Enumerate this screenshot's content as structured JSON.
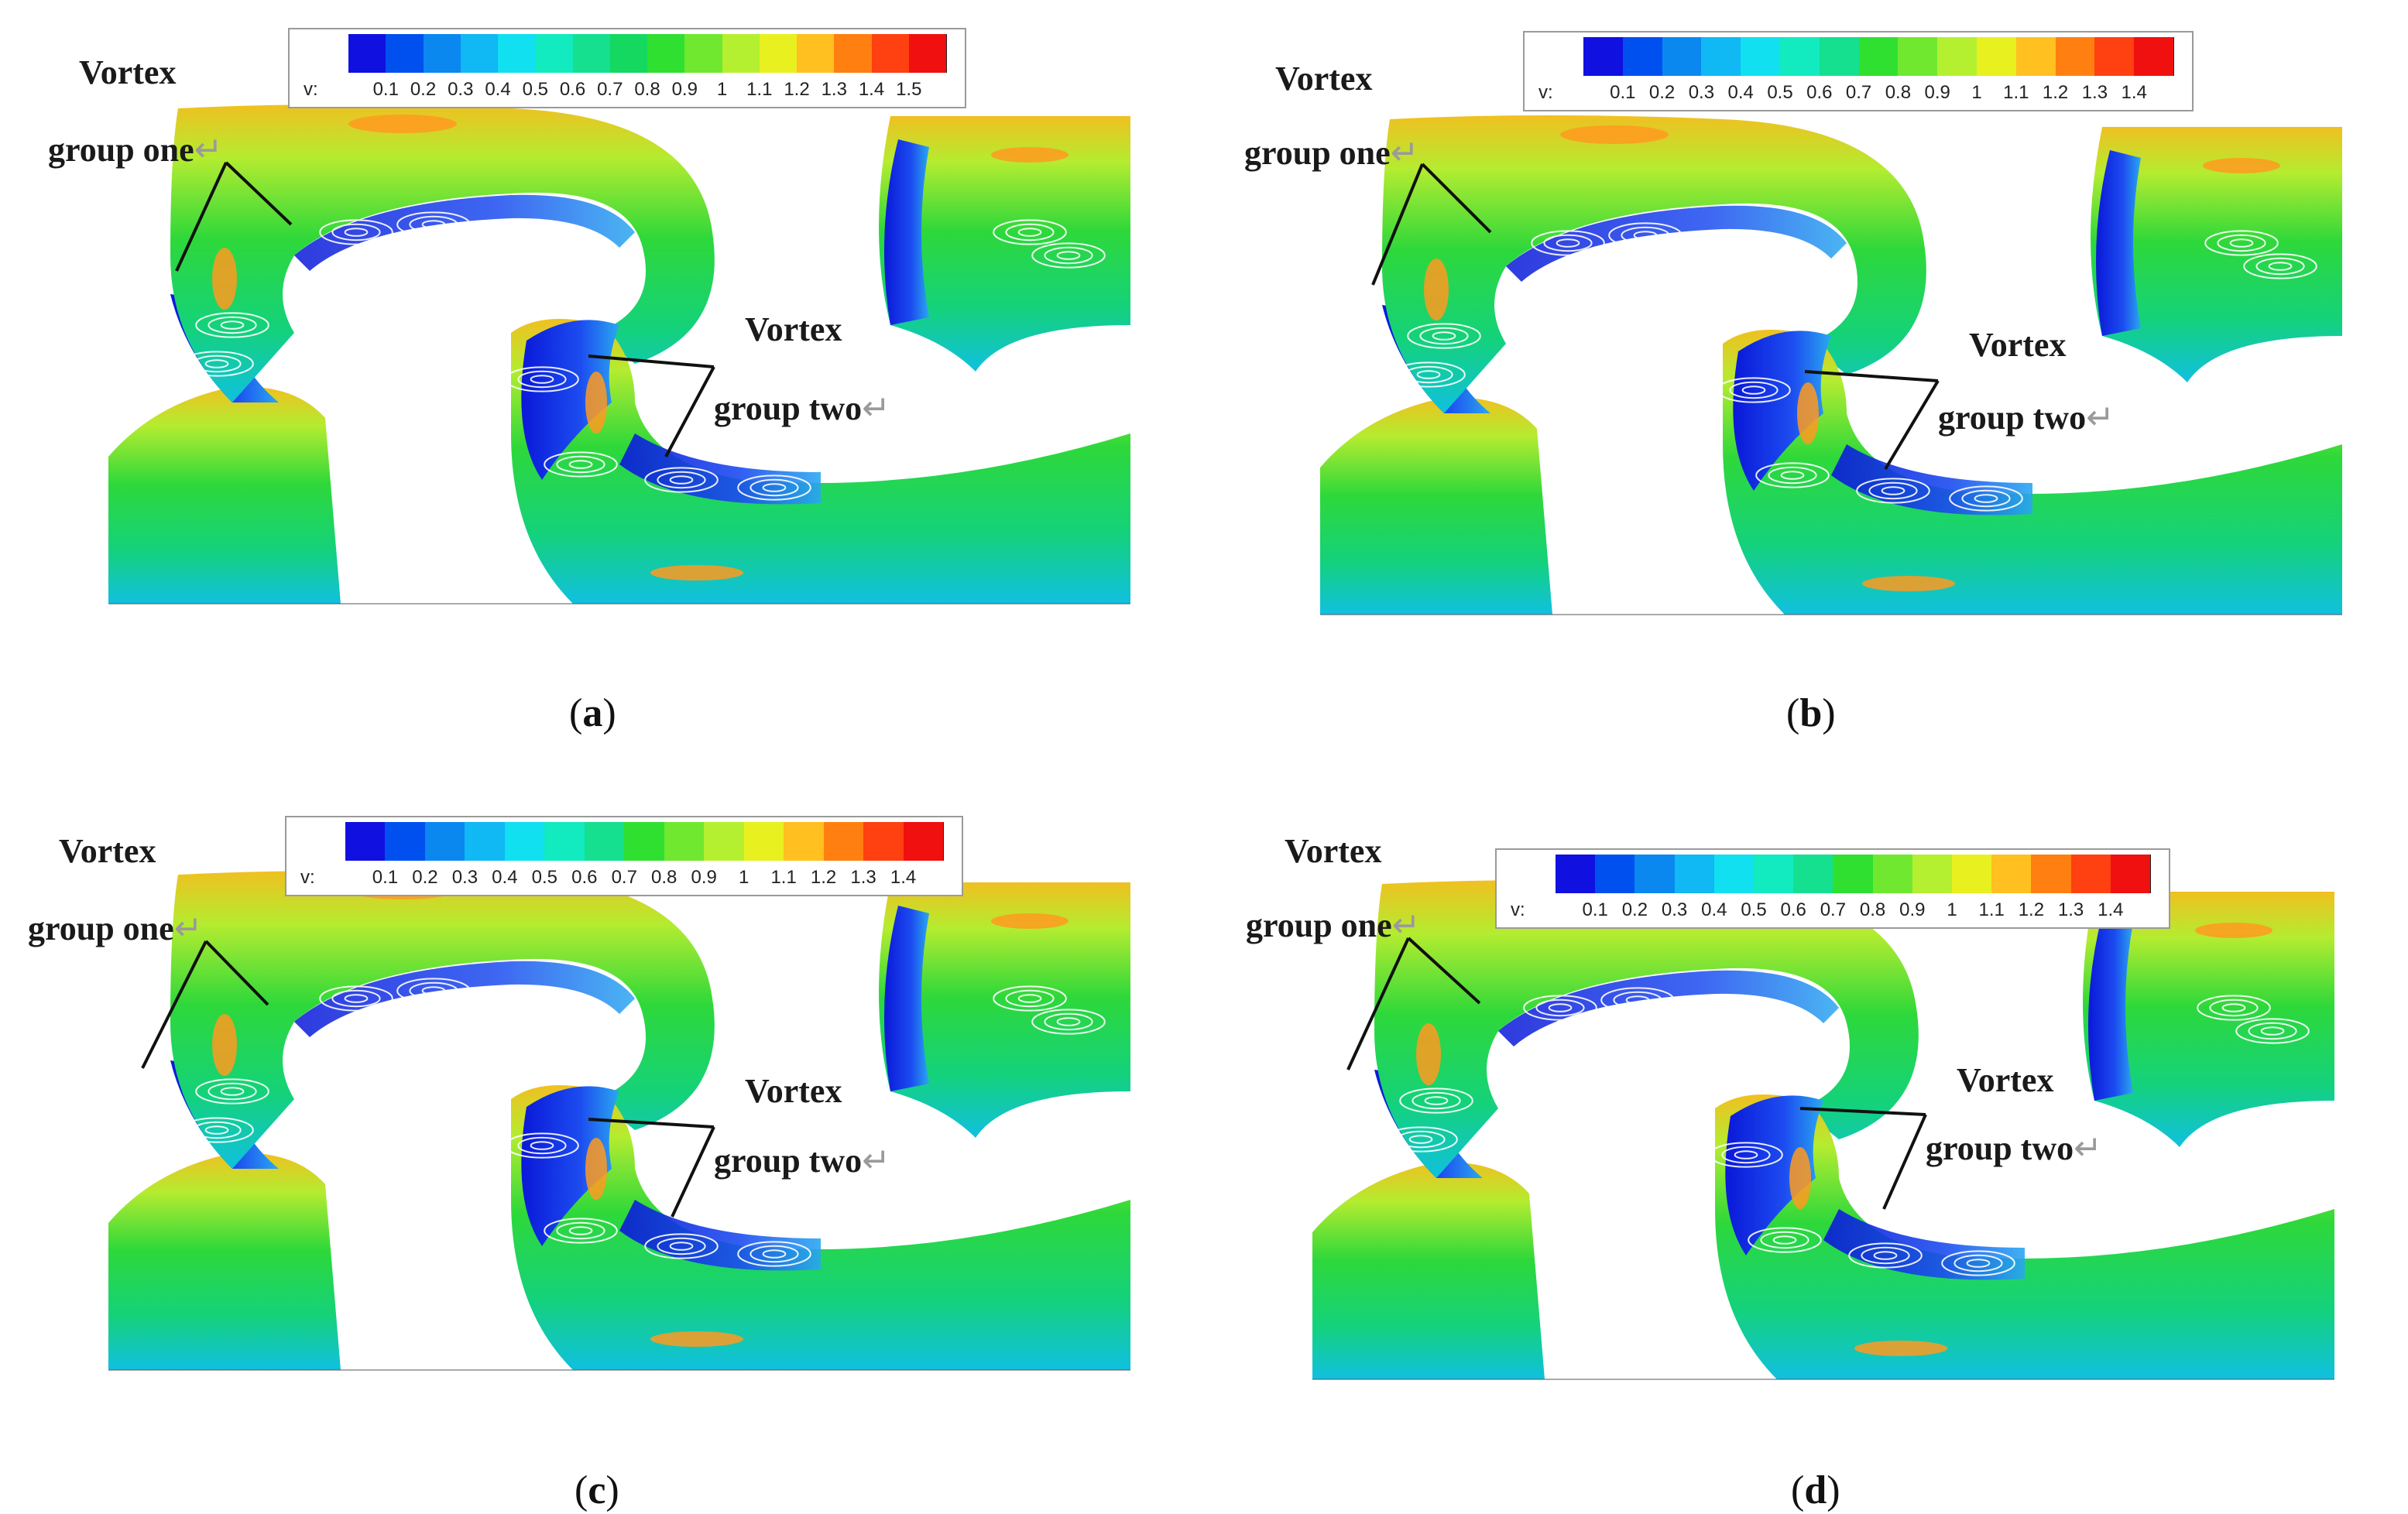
{
  "colors": {
    "scale": [
      "#1010e0",
      "#0050f0",
      "#0a88f0",
      "#10b8f4",
      "#10e0f0",
      "#12eac0",
      "#14e090",
      "#14d860",
      "#30e030",
      "#70e830",
      "#b4f030",
      "#e8f020",
      "#ffc020",
      "#ff8010",
      "#ff4010",
      "#f01010"
    ],
    "line": "#111111",
    "streamline": "#ffffff"
  },
  "panels": [
    {
      "id": "a",
      "caption": "a",
      "label_vortex_1": "Vortex",
      "label_group_one": "group one",
      "label_vortex_2": "Vortex",
      "label_group_two": "group two",
      "return_mark": "↵",
      "colorbar": {
        "var": "v:",
        "ticks": [
          "0.1",
          "0.2",
          "0.3",
          "0.4",
          "0.5",
          "0.6",
          "0.7",
          "0.8",
          "0.9",
          "1",
          "1.1",
          "1.2",
          "1.3",
          "1.4",
          "1.5"
        ]
      }
    },
    {
      "id": "b",
      "caption": "b",
      "label_vortex_1": "Vortex",
      "label_group_one": "group one",
      "label_vortex_2": "Vortex",
      "label_group_two": "group two",
      "return_mark": "↵",
      "colorbar": {
        "var": "v:",
        "ticks": [
          "0.1",
          "0.2",
          "0.3",
          "0.4",
          "0.5",
          "0.6",
          "0.7",
          "0.8",
          "0.9",
          "1",
          "1.1",
          "1.2",
          "1.3",
          "1.4"
        ]
      }
    },
    {
      "id": "c",
      "caption": "c",
      "label_vortex_1": "Vortex",
      "label_group_one": "group one",
      "label_vortex_2": "Vortex",
      "label_group_two": "group two",
      "return_mark": "↵",
      "colorbar": {
        "var": "v:",
        "ticks": [
          "0.1",
          "0.2",
          "0.3",
          "0.4",
          "0.5",
          "0.6",
          "0.7",
          "0.8",
          "0.9",
          "1",
          "1.1",
          "1.2",
          "1.3",
          "1.4"
        ]
      }
    },
    {
      "id": "d",
      "caption": "d",
      "label_vortex_1": "Vortex",
      "label_group_one": "group one",
      "label_vortex_2": "Vortex",
      "label_group_two": "group two",
      "return_mark": "↵",
      "colorbar": {
        "var": "v:",
        "ticks": [
          "0.1",
          "0.2",
          "0.3",
          "0.4",
          "0.5",
          "0.6",
          "0.7",
          "0.8",
          "0.9",
          "1",
          "1.1",
          "1.2",
          "1.3",
          "1.4"
        ]
      }
    }
  ]
}
